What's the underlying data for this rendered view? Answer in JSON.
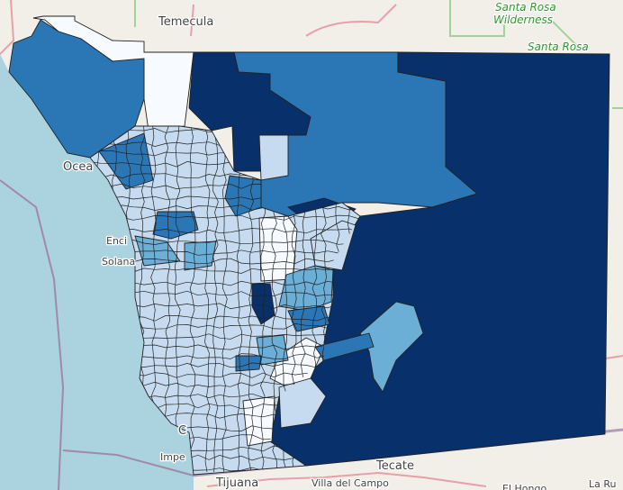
{
  "map": {
    "basemap_labels": [
      {
        "text": "Temecula",
        "kind": "city"
      },
      {
        "text": "Santa Rosa",
        "kind": "park"
      },
      {
        "text": "Wilderness",
        "kind": "park"
      },
      {
        "text": "Santa Rosa",
        "kind": "park"
      },
      {
        "text": "Ocea",
        "kind": "city"
      },
      {
        "text": "Enci",
        "kind": "city"
      },
      {
        "text": "Solana",
        "kind": "city"
      },
      {
        "text": "C",
        "kind": "city"
      },
      {
        "text": "Impe",
        "kind": "city"
      },
      {
        "text": "Tijuana",
        "kind": "city"
      },
      {
        "text": "Tecate",
        "kind": "city"
      },
      {
        "text": "Villa del Campo",
        "kind": "city"
      },
      {
        "text": "El Hongo",
        "kind": "city"
      },
      {
        "text": "La Ru",
        "kind": "city"
      }
    ],
    "colors": {
      "ocean": "#aad3df",
      "land": "#f2efe9",
      "class_1": "#f7fbff",
      "class_2": "#c6dbef",
      "class_3": "#6baed6",
      "class_4": "#2b76b5",
      "class_5": "#08306b",
      "border": "#222222"
    }
  }
}
